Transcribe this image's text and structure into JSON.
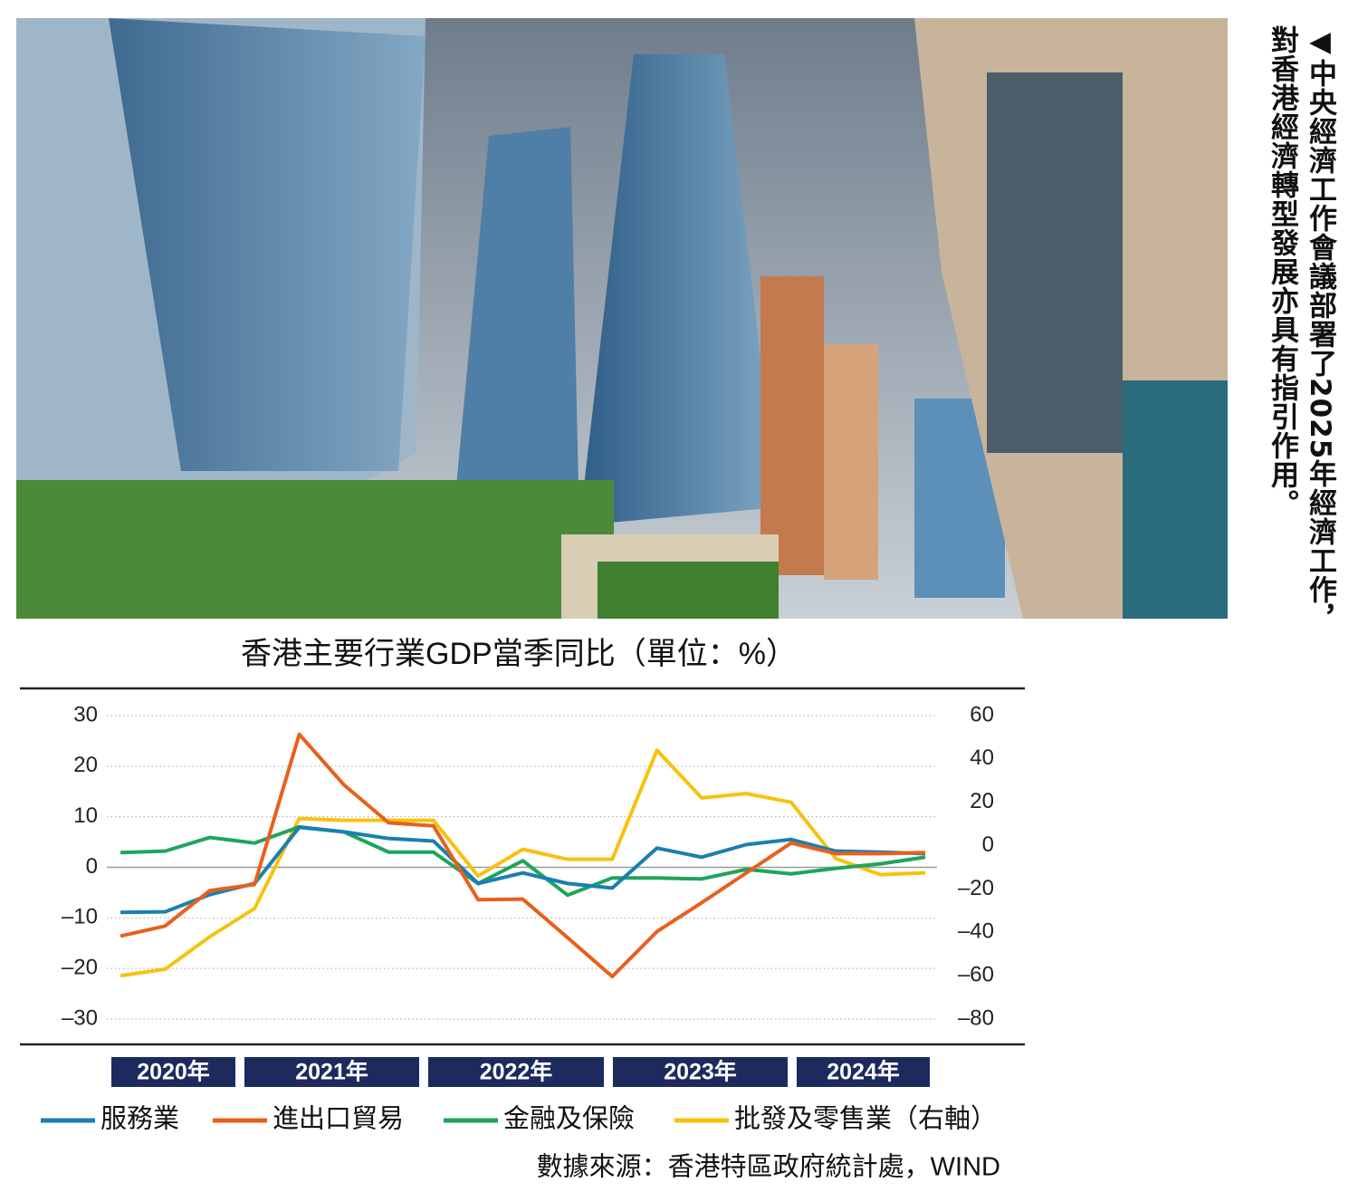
{
  "caption": [
    "◀中央經濟工作會議部署了2025年經濟工作，",
    "對香港經濟轉型發展亦具有指引作用。"
  ],
  "chart_data": {
    "type": "line",
    "title": "香港主要行業GDP當季同比（單位：%）",
    "source": "數據來源：香港特區政府統計處，WIND",
    "year_labels": [
      "2020年",
      "2021年",
      "2022年",
      "2023年",
      "2024年"
    ],
    "categories": [
      null,
      null,
      null,
      null,
      null,
      null,
      null,
      null,
      null,
      null,
      null,
      null,
      null,
      null,
      null,
      null,
      null,
      null,
      null
    ],
    "ylim": [
      -30,
      30
    ],
    "yticks": [
      {
        "value": -30,
        "label": "–30"
      },
      {
        "value": -20,
        "label": "–20"
      },
      {
        "value": -10,
        "label": "–10"
      },
      0,
      10,
      20,
      30
    ],
    "y2lim": [
      -80,
      60
    ],
    "y2ticks": [
      {
        "value": -80,
        "label": "–80"
      },
      {
        "value": -60,
        "label": "–60"
      },
      {
        "value": -40,
        "label": "–40"
      },
      {
        "value": -20,
        "label": "–20"
      },
      0,
      20,
      40,
      60
    ],
    "grid": true,
    "series": [
      {
        "name": "服務業",
        "color": "#1a7fb0",
        "values": [
          -8.9,
          -8.8,
          -5.4,
          -3.2,
          7.9,
          7.0,
          5.7,
          5.2,
          -3.2,
          -1.1,
          -3.2,
          -4.1,
          3.8,
          2.0,
          4.5,
          5.5,
          3.2,
          3.0,
          2.7
        ]
      },
      {
        "name": "進出口貿易",
        "color": "#e8601c",
        "values": [
          -13.6,
          -11.6,
          -4.6,
          -3.4,
          26.3,
          16.3,
          8.8,
          8.2,
          -6.4,
          -6.3,
          -13.9,
          -21.6,
          -12.7,
          -7.0,
          -1.1,
          4.8,
          2.7,
          2.7,
          2.9
        ]
      },
      {
        "name": "金融及保險",
        "color": "#1fa55a",
        "values": [
          2.9,
          3.2,
          5.9,
          4.8,
          8.0,
          7.0,
          3.0,
          3.0,
          -3.2,
          1.3,
          -5.5,
          -2.1,
          -2.1,
          -2.3,
          -0.4,
          -1.3,
          -0.2,
          0.7,
          2.0
        ]
      },
      {
        "name": "批發及零售業（右軸）",
        "color": "#f7c20f",
        "axis": "y2",
        "values": [
          -60,
          -57,
          -42,
          -29,
          12.5,
          11.7,
          11.7,
          11.7,
          -14,
          -1.7,
          -6.3,
          -6.3,
          44,
          22,
          24,
          20,
          -6,
          -13.4,
          -12.5
        ]
      }
    ]
  }
}
